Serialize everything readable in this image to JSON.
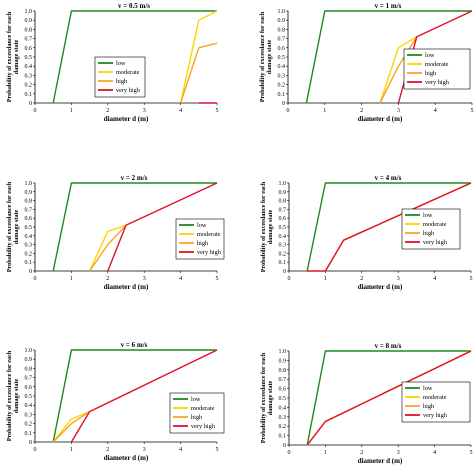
{
  "chart_data": [
    {
      "type": "line",
      "title": "v = 0.5 m/s",
      "xlabel": "diameter d (m)",
      "ylabel": "Probability of exceedance for each damage state",
      "xlim": [
        0,
        5
      ],
      "ylim": [
        0,
        1
      ],
      "xticks": [
        "0",
        "1",
        "2",
        "3",
        "4",
        "5"
      ],
      "yticks": [
        "0",
        "0.1",
        "0.2",
        "0.3",
        "0.4",
        "0.5",
        "0.6",
        "0.7",
        "0.8",
        "0.9",
        "1.0"
      ],
      "legend_position": "middle-left",
      "series": [
        {
          "name": "low",
          "color": "#1f8a1f",
          "x": [
            0.5,
            1,
            5
          ],
          "y": [
            0,
            1,
            1
          ]
        },
        {
          "name": "moderate",
          "color": "#ffd400",
          "x": [
            4,
            4.5,
            5
          ],
          "y": [
            0,
            0.9,
            1
          ]
        },
        {
          "name": "high",
          "color": "#f5a623",
          "x": [
            4,
            4.5,
            5
          ],
          "y": [
            0,
            0.6,
            0.65
          ]
        },
        {
          "name": "very high",
          "color": "#e0102a",
          "x": [
            4.5,
            5
          ],
          "y": [
            0,
            0
          ]
        }
      ]
    },
    {
      "type": "line",
      "title": "v = 1 m/s",
      "xlabel": "diameter d (m)",
      "ylabel": "Probability of exceedance for each damage state",
      "xlim": [
        0,
        5
      ],
      "ylim": [
        0,
        1
      ],
      "xticks": [
        "0",
        "1",
        "2",
        "3",
        "4",
        "5"
      ],
      "yticks": [
        "0",
        "0.1",
        "0.2",
        "0.3",
        "0.4",
        "0.5",
        "0.6",
        "0.7",
        "0.8",
        "0.9",
        "1.0"
      ],
      "legend_position": "middle-right",
      "series": [
        {
          "name": "low",
          "color": "#1f8a1f",
          "x": [
            0.5,
            1,
            5
          ],
          "y": [
            0,
            1,
            1
          ]
        },
        {
          "name": "moderate",
          "color": "#ffd400",
          "x": [
            2.5,
            3,
            3.5
          ],
          "y": [
            0,
            0.6,
            0.72
          ]
        },
        {
          "name": "high",
          "color": "#f5a623",
          "x": [
            2.5,
            3,
            3.5
          ],
          "y": [
            0,
            0.4,
            0.72
          ]
        },
        {
          "name": "very high",
          "color": "#e0102a",
          "x": [
            3,
            3.5,
            5
          ],
          "y": [
            0,
            0.72,
            1
          ]
        }
      ]
    },
    {
      "type": "line",
      "title": "v = 2 m/s",
      "xlabel": "diameter d (m)",
      "ylabel": "Probability of exceedance for each damage state",
      "xlim": [
        0,
        5
      ],
      "ylim": [
        0,
        1
      ],
      "xticks": [
        "0",
        "1",
        "2",
        "3",
        "4",
        "5"
      ],
      "yticks": [
        "0",
        "0.1",
        "0.2",
        "0.3",
        "0.4",
        "0.5",
        "0.6",
        "0.7",
        "0.8",
        "0.9",
        "1.0"
      ],
      "legend_position": "middle-right",
      "series": [
        {
          "name": "low",
          "color": "#1f8a1f",
          "x": [
            0.5,
            1,
            5
          ],
          "y": [
            0,
            1,
            1
          ]
        },
        {
          "name": "moderate",
          "color": "#ffd400",
          "x": [
            1.5,
            2,
            2.5
          ],
          "y": [
            0,
            0.45,
            0.52
          ]
        },
        {
          "name": "high",
          "color": "#f5a623",
          "x": [
            1.5,
            2,
            2.5
          ],
          "y": [
            0,
            0.3,
            0.52
          ]
        },
        {
          "name": "very high",
          "color": "#e0102a",
          "x": [
            2,
            2.5,
            5
          ],
          "y": [
            0,
            0.52,
            1
          ]
        }
      ]
    },
    {
      "type": "line",
      "title": "v = 4 m/s",
      "xlabel": "diameter d (m)",
      "ylabel": "Probability of exceedance for each damage state",
      "xlim": [
        0,
        5
      ],
      "ylim": [
        0,
        1
      ],
      "xticks": [
        "0",
        "1",
        "2",
        "3",
        "4",
        "5"
      ],
      "yticks": [
        "0",
        "0.1",
        "0.2",
        "0.3",
        "0.4",
        "0.5",
        "0.6",
        "0.7",
        "0.8",
        "0.9",
        "1.0"
      ],
      "legend_position": "middle-right",
      "series": [
        {
          "name": "low",
          "color": "#1f8a1f",
          "x": [
            0.5,
            1,
            5
          ],
          "y": [
            0,
            1,
            1
          ]
        },
        {
          "name": "moderate",
          "color": "#ffd400",
          "x": [
            1,
            1.5,
            5
          ],
          "y": [
            0,
            0.35,
            1
          ]
        },
        {
          "name": "high",
          "color": "#f5a623",
          "x": [
            1,
            1.5,
            5
          ],
          "y": [
            0,
            0.35,
            1
          ]
        },
        {
          "name": "very high",
          "color": "#e0102a",
          "x": [
            0.5,
            1,
            1.5,
            5
          ],
          "y": [
            0,
            0,
            0.35,
            1
          ]
        }
      ]
    },
    {
      "type": "line",
      "title": "v = 6 m/s",
      "xlabel": "diameter d (m)",
      "ylabel": "Probability of exceedance for each damage state",
      "xlim": [
        0,
        5
      ],
      "ylim": [
        0,
        1
      ],
      "xticks": [
        "0",
        "1",
        "2",
        "3",
        "4",
        "5"
      ],
      "yticks": [
        "0",
        "0.1",
        "0.2",
        "0.3",
        "0.4",
        "0.5",
        "0.6",
        "0.7",
        "0.8",
        "0.9",
        "1.0"
      ],
      "legend_position": "middle-right",
      "series": [
        {
          "name": "low",
          "color": "#1f8a1f",
          "x": [
            0.5,
            1,
            5
          ],
          "y": [
            0,
            1,
            1
          ]
        },
        {
          "name": "moderate",
          "color": "#ffd400",
          "x": [
            0.5,
            1,
            1.5
          ],
          "y": [
            0,
            0.25,
            0.33
          ]
        },
        {
          "name": "high",
          "color": "#f5a623",
          "x": [
            0.5,
            1,
            1.5
          ],
          "y": [
            0,
            0.2,
            0.33
          ]
        },
        {
          "name": "very high",
          "color": "#e0102a",
          "x": [
            1,
            1.5,
            5
          ],
          "y": [
            0,
            0.33,
            1
          ]
        }
      ]
    },
    {
      "type": "line",
      "title": "v = 8 m/s",
      "xlabel": "diameter d (m)",
      "ylabel": "Probability of exceedance for each damage state",
      "xlim": [
        0,
        5
      ],
      "ylim": [
        0,
        1
      ],
      "xticks": [
        "0",
        "1",
        "2",
        "3",
        "4",
        "5"
      ],
      "yticks": [
        "0",
        "0.1",
        "0.2",
        "0.3",
        "0.4",
        "0.5",
        "0.6",
        "0.7",
        "0.8",
        "0.9",
        "1.0"
      ],
      "legend_position": "middle-right",
      "series": [
        {
          "name": "low",
          "color": "#1f8a1f",
          "x": [
            0.5,
            1,
            5
          ],
          "y": [
            0,
            1,
            1
          ]
        },
        {
          "name": "moderate",
          "color": "#ffd400",
          "x": [
            0.5,
            1,
            5
          ],
          "y": [
            0,
            0.25,
            1
          ]
        },
        {
          "name": "high",
          "color": "#f5a623",
          "x": [
            0.5,
            1,
            5
          ],
          "y": [
            0,
            0.25,
            1
          ]
        },
        {
          "name": "very high",
          "color": "#e0102a",
          "x": [
            0.5,
            1,
            5
          ],
          "y": [
            0,
            0.25,
            1
          ]
        }
      ]
    }
  ]
}
